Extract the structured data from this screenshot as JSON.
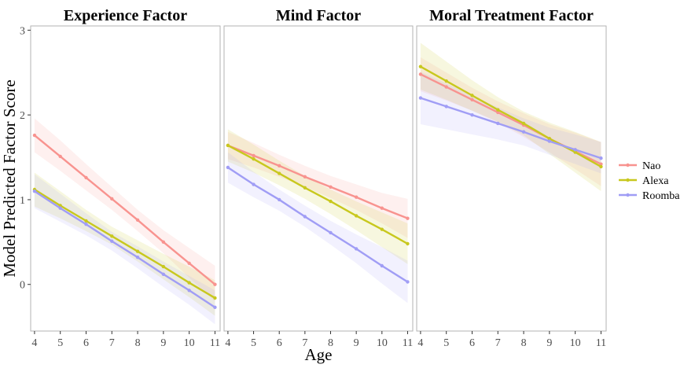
{
  "chart_data": {
    "type": "line",
    "xlabel": "Age",
    "ylabel": "Model Predicted Factor Score",
    "ylim": [
      -0.55,
      3.05
    ],
    "y_ticks": [
      0,
      1,
      2,
      3
    ],
    "x_ticks": [
      4,
      5,
      6,
      7,
      8,
      9,
      10,
      11
    ],
    "legend_position": "right",
    "series_colors": {
      "Nao": "#f8938f",
      "Alexa": "#c8c81e",
      "Roomba": "#a09df5"
    },
    "panels": [
      {
        "title": "Experience Factor",
        "xlim": [
          3.85,
          11.2
        ],
        "series": [
          {
            "name": "Nao",
            "x": [
              4,
              5,
              6,
              7,
              8,
              9,
              10,
              11
            ],
            "values": [
              1.76,
              1.51,
              1.26,
              1.01,
              0.76,
              0.5,
              0.25,
              0.0
            ],
            "lower": [
              1.56,
              1.34,
              1.11,
              0.88,
              0.63,
              0.37,
              0.08,
              -0.2
            ],
            "upper": [
              1.96,
              1.7,
              1.42,
              1.15,
              0.88,
              0.64,
              0.43,
              0.22
            ]
          },
          {
            "name": "Alexa",
            "x": [
              4,
              5,
              6,
              7,
              8,
              9,
              10,
              11
            ],
            "values": [
              1.12,
              0.93,
              0.75,
              0.57,
              0.39,
              0.21,
              0.02,
              -0.16
            ],
            "lower": [
              0.92,
              0.78,
              0.63,
              0.47,
              0.27,
              0.06,
              -0.15,
              -0.37
            ],
            "upper": [
              1.32,
              1.1,
              0.88,
              0.68,
              0.52,
              0.36,
              0.21,
              0.05
            ]
          },
          {
            "name": "Roomba",
            "x": [
              4,
              5,
              6,
              7,
              8,
              9,
              10,
              11
            ],
            "values": [
              1.1,
              0.9,
              0.71,
              0.51,
              0.32,
              0.12,
              -0.07,
              -0.27
            ],
            "lower": [
              0.9,
              0.74,
              0.58,
              0.4,
              0.19,
              -0.03,
              -0.24,
              -0.47
            ],
            "upper": [
              1.3,
              1.07,
              0.84,
              0.62,
              0.45,
              0.27,
              0.1,
              -0.07
            ]
          }
        ]
      },
      {
        "title": "Mind Factor",
        "xlim": [
          3.85,
          11.2
        ],
        "series": [
          {
            "name": "Nao",
            "x": [
              4,
              5,
              6,
              7,
              8,
              9,
              10,
              11
            ],
            "values": [
              1.64,
              1.52,
              1.4,
              1.27,
              1.15,
              1.03,
              0.9,
              0.78
            ],
            "lower": [
              1.48,
              1.38,
              1.27,
              1.15,
              1.02,
              0.88,
              0.72,
              0.55
            ],
            "upper": [
              1.8,
              1.67,
              1.53,
              1.4,
              1.28,
              1.18,
              1.08,
              1.01
            ]
          },
          {
            "name": "Alexa",
            "x": [
              4,
              5,
              6,
              7,
              8,
              9,
              10,
              11
            ],
            "values": [
              1.64,
              1.48,
              1.31,
              1.14,
              0.98,
              0.81,
              0.65,
              0.48
            ],
            "lower": [
              1.45,
              1.32,
              1.17,
              1.01,
              0.83,
              0.64,
              0.44,
              0.24
            ],
            "upper": [
              1.83,
              1.65,
              1.46,
              1.28,
              1.12,
              0.98,
              0.85,
              0.72
            ]
          },
          {
            "name": "Roomba",
            "x": [
              4,
              5,
              6,
              7,
              8,
              9,
              10,
              11
            ],
            "values": [
              1.38,
              1.18,
              1.0,
              0.8,
              0.61,
              0.42,
              0.22,
              0.03
            ],
            "lower": [
              1.2,
              1.03,
              0.87,
              0.68,
              0.47,
              0.25,
              0.01,
              -0.22
            ],
            "upper": [
              1.56,
              1.33,
              1.12,
              0.93,
              0.75,
              0.59,
              0.44,
              0.28
            ]
          }
        ]
      },
      {
        "title": "Moral Treatment Factor",
        "xlim": [
          3.85,
          11.2
        ],
        "series": [
          {
            "name": "Nao",
            "x": [
              4,
              5,
              6,
              7,
              8,
              9,
              10,
              11
            ],
            "values": [
              2.48,
              2.33,
              2.18,
              2.03,
              1.88,
              1.72,
              1.57,
              1.42
            ],
            "lower": [
              2.28,
              2.17,
              2.05,
              1.91,
              1.74,
              1.56,
              1.36,
              1.16
            ],
            "upper": [
              2.68,
              2.5,
              2.32,
              2.16,
              2.02,
              1.89,
              1.79,
              1.68
            ]
          },
          {
            "name": "Alexa",
            "x": [
              4,
              5,
              6,
              7,
              8,
              9,
              10,
              11
            ],
            "values": [
              2.57,
              2.4,
              2.23,
              2.06,
              1.9,
              1.72,
              1.56,
              1.39
            ],
            "lower": [
              2.3,
              2.18,
              2.05,
              1.92,
              1.76,
              1.54,
              1.32,
              1.1
            ],
            "upper": [
              2.85,
              2.63,
              2.41,
              2.21,
              2.04,
              1.91,
              1.8,
              1.68
            ]
          },
          {
            "name": "Roomba",
            "x": [
              4,
              5,
              6,
              7,
              8,
              9,
              10,
              11
            ],
            "values": [
              2.2,
              2.1,
              2.0,
              1.9,
              1.8,
              1.69,
              1.59,
              1.49
            ],
            "lower": [
              1.89,
              1.83,
              1.77,
              1.71,
              1.64,
              1.53,
              1.42,
              1.31
            ],
            "upper": [
              2.51,
              2.37,
              2.23,
              2.09,
              1.96,
              1.85,
              1.77,
              1.68
            ]
          }
        ]
      }
    ],
    "legend": [
      "Nao",
      "Alexa",
      "Roomba"
    ]
  }
}
